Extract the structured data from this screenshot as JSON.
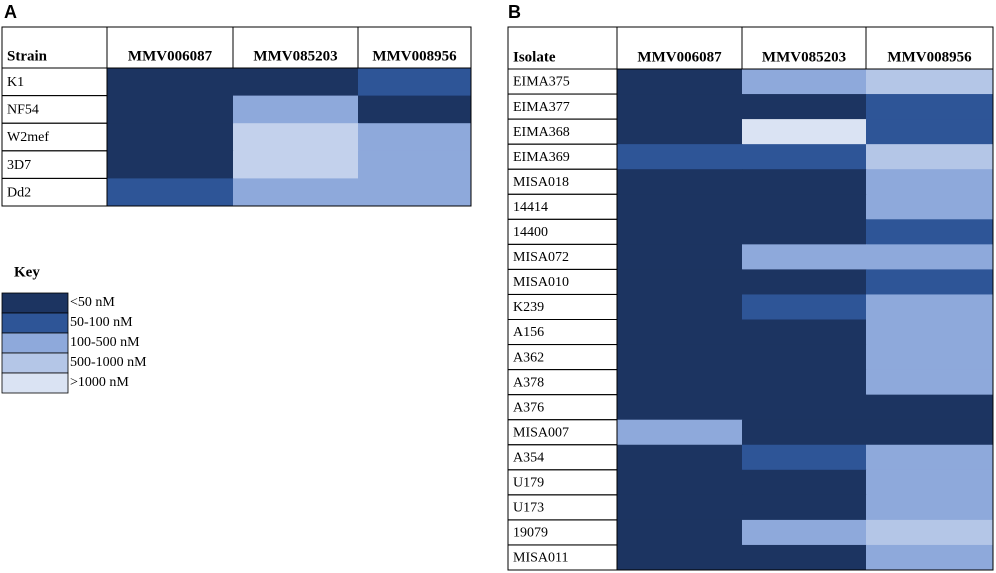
{
  "panels": [
    {
      "label": "A",
      "header": [
        "Strain",
        "MMV006087",
        "MMV085203",
        "MMV008956"
      ],
      "rows": [
        {
          "name": "K1",
          "cells": [
            "#1c3461",
            "#1c3461",
            "#2e5597"
          ]
        },
        {
          "name": "NF54",
          "cells": [
            "#1c3461",
            "#8ea9db",
            "#1c3461"
          ]
        },
        {
          "name": "W2mef",
          "cells": [
            "#1c3461",
            "#c3d1ec",
            "#8ea9db"
          ]
        },
        {
          "name": "3D7",
          "cells": [
            "#1c3461",
            "#c3d1ec",
            "#8ea9db"
          ]
        },
        {
          "name": "Dd2",
          "cells": [
            "#2e5597",
            "#8ea9db",
            "#8ea9db"
          ]
        }
      ]
    },
    {
      "label": "B",
      "header": [
        "Isolate",
        "MMV006087",
        "MMV085203",
        "MMV008956"
      ],
      "rows": [
        {
          "name": "EIMA375",
          "cells": [
            "#1c3461",
            "#8ea9db",
            "#b4c6e7"
          ]
        },
        {
          "name": "EIMA377",
          "cells": [
            "#1c3461",
            "#1c3461",
            "#2e5597"
          ]
        },
        {
          "name": "EIMA368",
          "cells": [
            "#1c3461",
            "#dae3f3",
            "#2e5597"
          ]
        },
        {
          "name": "EIMA369",
          "cells": [
            "#2e5597",
            "#2e5597",
            "#b4c6e7"
          ]
        },
        {
          "name": "MISA018",
          "cells": [
            "#1c3461",
            "#1c3461",
            "#8ea9db"
          ]
        },
        {
          "name": "14414",
          "cells": [
            "#1c3461",
            "#1c3461",
            "#8ea9db"
          ]
        },
        {
          "name": "14400",
          "cells": [
            "#1c3461",
            "#1c3461",
            "#2e5597"
          ]
        },
        {
          "name": "MISA072",
          "cells": [
            "#1c3461",
            "#8ea9db",
            "#8ea9db"
          ]
        },
        {
          "name": "MISA010",
          "cells": [
            "#1c3461",
            "#1c3461",
            "#2e5597"
          ]
        },
        {
          "name": "K239",
          "cells": [
            "#1c3461",
            "#2e5597",
            "#8ea9db"
          ]
        },
        {
          "name": "A156",
          "cells": [
            "#1c3461",
            "#1c3461",
            "#8ea9db"
          ]
        },
        {
          "name": "A362",
          "cells": [
            "#1c3461",
            "#1c3461",
            "#8ea9db"
          ]
        },
        {
          "name": "A378",
          "cells": [
            "#1c3461",
            "#1c3461",
            "#8ea9db"
          ]
        },
        {
          "name": "A376",
          "cells": [
            "#1c3461",
            "#1c3461",
            "#1c3461"
          ]
        },
        {
          "name": "MISA007",
          "cells": [
            "#8ea9db",
            "#1c3461",
            "#1c3461"
          ]
        },
        {
          "name": "A354",
          "cells": [
            "#1c3461",
            "#2e5597",
            "#8ea9db"
          ]
        },
        {
          "name": "U179",
          "cells": [
            "#1c3461",
            "#1c3461",
            "#8ea9db"
          ]
        },
        {
          "name": "U173",
          "cells": [
            "#1c3461",
            "#1c3461",
            "#8ea9db"
          ]
        },
        {
          "name": "19079",
          "cells": [
            "#1c3461",
            "#8ea9db",
            "#b4c6e7"
          ]
        },
        {
          "name": "MISA011",
          "cells": [
            "#1c3461",
            "#1c3461",
            "#8ea9db"
          ]
        }
      ]
    }
  ],
  "key": {
    "title": "Key",
    "items": [
      {
        "label": "<50 nM",
        "color": "#1c3461"
      },
      {
        "label": "50-100 nM",
        "color": "#2e5597"
      },
      {
        "label": "100-500 nM",
        "color": "#8ea9db"
      },
      {
        "label": "500-1000 nM",
        "color": "#b4c6e7"
      },
      {
        "label": ">1000 nM",
        "color": "#dae3f3"
      }
    ]
  }
}
